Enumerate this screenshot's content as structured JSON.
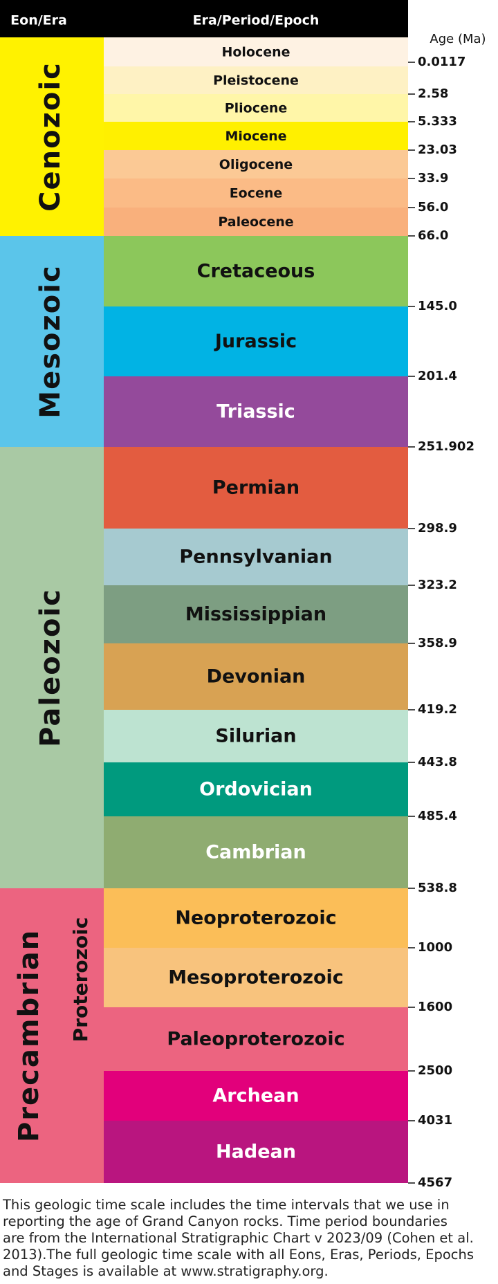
{
  "header": {
    "eon_era": "Eon/Era",
    "period": "Era/Period/Epoch",
    "age": "Age (Ma)"
  },
  "eras": [
    {
      "label": "Cenozoic",
      "color": "#fff200"
    },
    {
      "label": "Mesozoic",
      "color": "#5bc5ea"
    },
    {
      "label": "Paleozoic",
      "color": "#a9c9a4"
    },
    {
      "label": "Precambrian",
      "color": "#ec6480"
    }
  ],
  "sub_eon": {
    "label": "Proterozoic",
    "color": "#ec6480"
  },
  "periods": [
    {
      "label": "Holocene",
      "color": "#fef2e3",
      "text_color": "#111"
    },
    {
      "label": "Pleistocene",
      "color": "#fef1c4",
      "text_color": "#111"
    },
    {
      "label": "Pliocene",
      "color": "#fff6a8",
      "text_color": "#111"
    },
    {
      "label": "Miocene",
      "color": "#fff000",
      "text_color": "#111"
    },
    {
      "label": "Oligocene",
      "color": "#fbc995",
      "text_color": "#111"
    },
    {
      "label": "Eocene",
      "color": "#fbbb86",
      "text_color": "#111"
    },
    {
      "label": "Paleocene",
      "color": "#f9b07c",
      "text_color": "#111"
    },
    {
      "label": "Cretaceous",
      "color": "#8cc75b",
      "text_color": "#111"
    },
    {
      "label": "Jurassic",
      "color": "#01b3e4",
      "text_color": "#111"
    },
    {
      "label": "Triassic",
      "color": "#944a9b",
      "text_color": "#fff"
    },
    {
      "label": "Permian",
      "color": "#e35c40",
      "text_color": "#111"
    },
    {
      "label": "Pennsylvanian",
      "color": "#a6cad0",
      "text_color": "#111"
    },
    {
      "label": "Mississippian",
      "color": "#7d9e82",
      "text_color": "#111"
    },
    {
      "label": "Devonian",
      "color": "#d8a253",
      "text_color": "#111"
    },
    {
      "label": "Silurian",
      "color": "#bde3d1",
      "text_color": "#111"
    },
    {
      "label": "Ordovician",
      "color": "#009a7e",
      "text_color": "#fff"
    },
    {
      "label": "Cambrian",
      "color": "#8fac71",
      "text_color": "#fff"
    },
    {
      "label": "Neoproterozoic",
      "color": "#fbbe58",
      "text_color": "#111"
    },
    {
      "label": "Mesoproterozoic",
      "color": "#f8c37d",
      "text_color": "#111"
    },
    {
      "label": "Paleoproterozoic",
      "color": "#ec6480",
      "text_color": "#111"
    },
    {
      "label": "Archean",
      "color": "#e2007b",
      "text_color": "#fff"
    },
    {
      "label": "Hadean",
      "color": "#b9157f",
      "text_color": "#fff"
    }
  ],
  "boundaries": [
    "0.0117",
    "2.58",
    "5.333",
    "23.03",
    "33.9",
    "56.0",
    "66.0",
    "145.0",
    "201.4",
    "251.902",
    "298.9",
    "323.2",
    "358.9",
    "419.2",
    "443.8",
    "485.4",
    "538.8",
    "1000",
    "1600",
    "2500",
    "4031",
    "4567"
  ],
  "caption": [
    "This geologic time scale includes the time intervals that we use in",
    "reporting the age of Grand Canyon rocks. Time period boundaries",
    "are from the International Stratigraphic Chart v 2023/09 (Cohen et al.",
    "2013).The full geologic time scale with all Eons, Eras, Periods, Epochs",
    "and Stages is available at www.stratigraphy.org."
  ]
}
